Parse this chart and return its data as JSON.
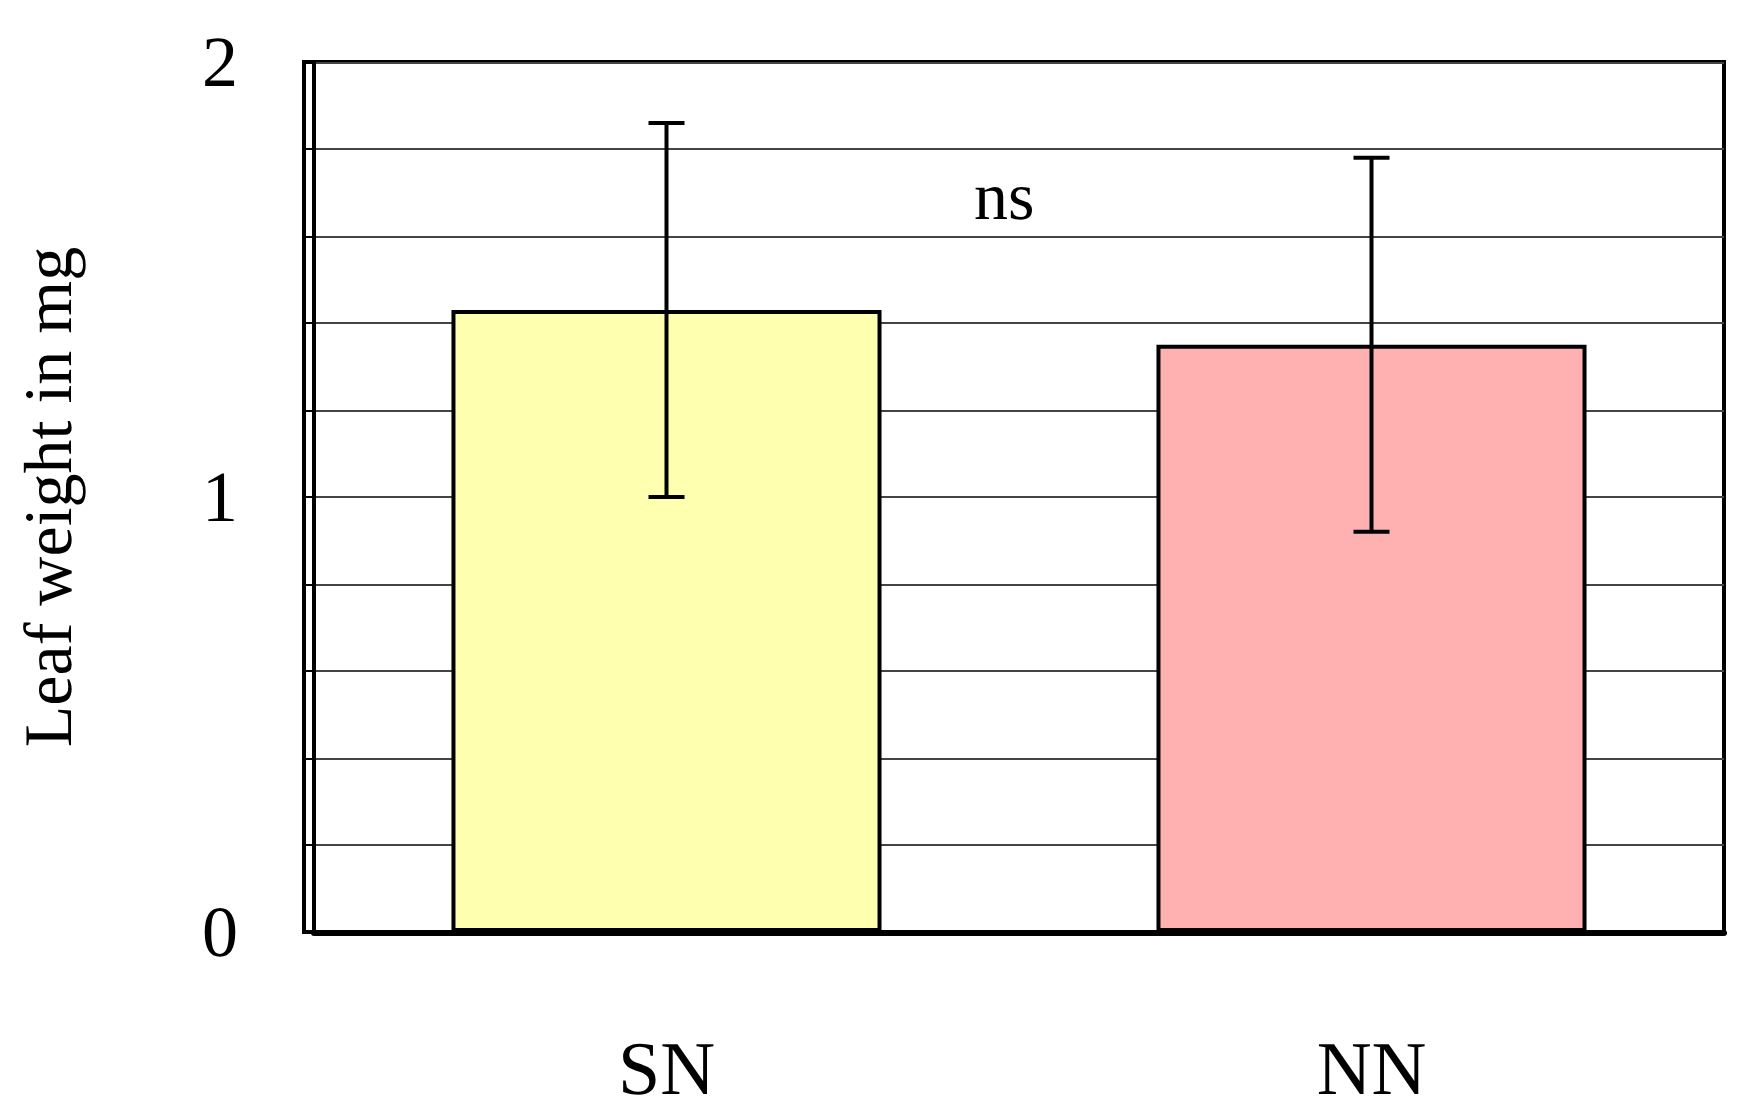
{
  "chart_data": {
    "type": "bar",
    "ylabel": "Leaf weight in mg",
    "categories": [
      "SN",
      "NN"
    ],
    "values": [
      1.43,
      1.35
    ],
    "colors": [
      "#ffffb0",
      "#ffb0b0"
    ],
    "errors": [
      0.43,
      0.43
    ],
    "ylim": [
      0,
      2
    ],
    "yticks": [
      0,
      {
        "value": 0.2,
        "label": null
      },
      {
        "value": 0.4,
        "label": null
      },
      {
        "value": 0.6,
        "label": null
      },
      {
        "value": 0.8,
        "label": null
      },
      1,
      {
        "value": 1.2,
        "label": null
      },
      {
        "value": 1.4,
        "label": null
      },
      {
        "value": 1.6,
        "label": null
      },
      {
        "value": 1.8,
        "label": null
      },
      2
    ],
    "grid": "y",
    "annotations": [
      "ns"
    ]
  }
}
